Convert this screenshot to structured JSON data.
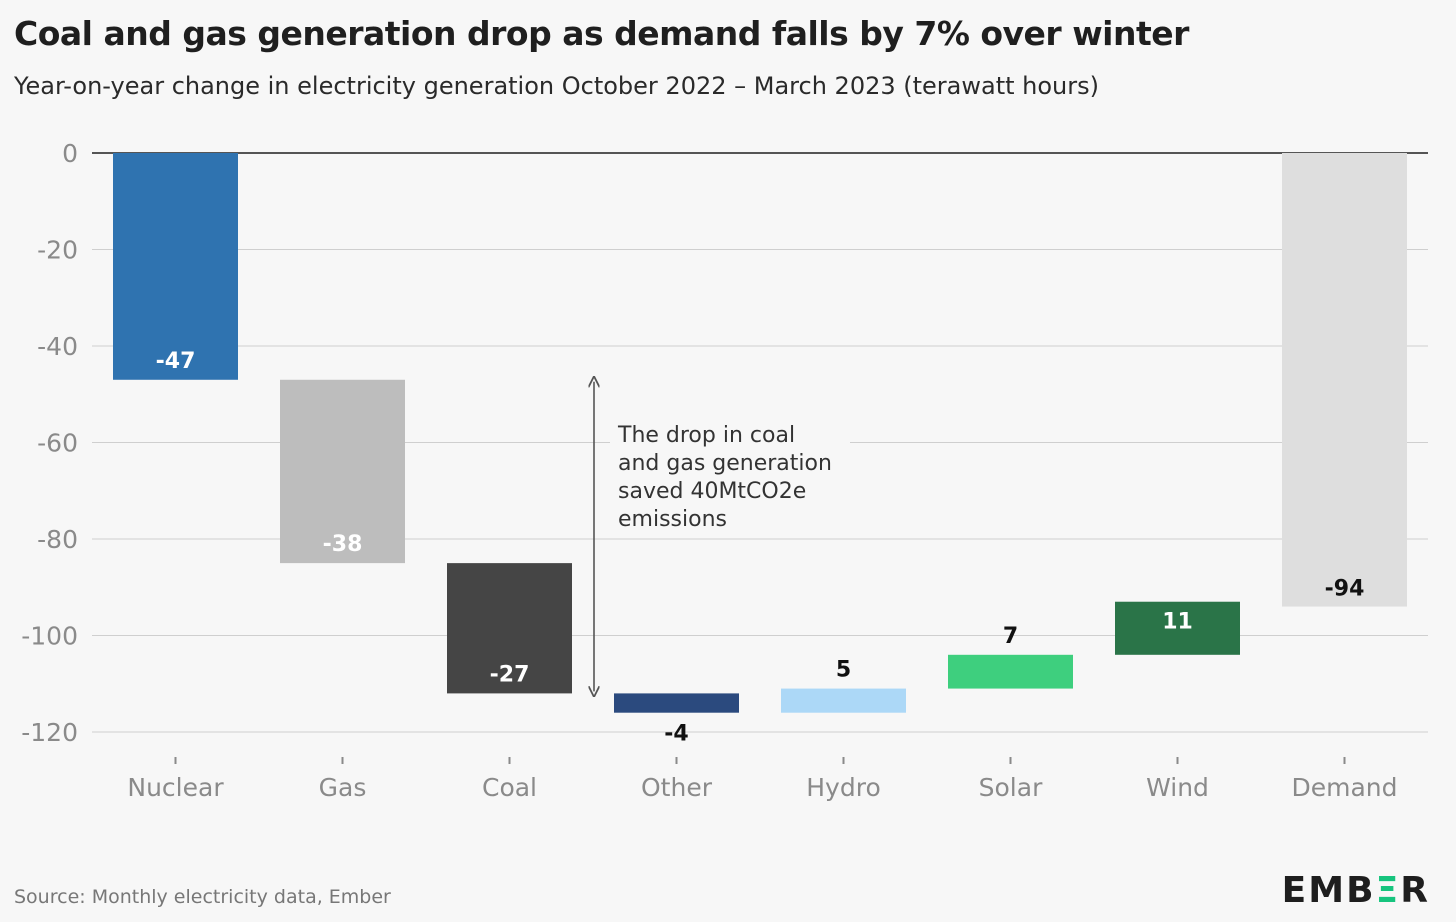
{
  "title": "Coal and gas generation drop as demand falls by 7% over winter",
  "subtitle": "Year-on-year change in electricity generation October 2022 – March 2023 (terawatt hours)",
  "source": "Source: Monthly electricity data, Ember",
  "logo": "EMBER",
  "annotation": [
    "The drop in coal",
    "and gas generation",
    "saved 40MtCO2e",
    "emissions"
  ],
  "colors": {
    "Nuclear": "#2f73b0",
    "Gas": "#bdbdbd",
    "Coal": "#454545",
    "Other": "#2b4a7e",
    "Hydro": "#acd8f7",
    "Solar": "#3ecf7e",
    "Wind": "#2a7448",
    "Demand": "#dedede",
    "brand_green": "#16c47e"
  },
  "chart_data": {
    "type": "waterfall",
    "categories": [
      "Nuclear",
      "Gas",
      "Coal",
      "Other",
      "Hydro",
      "Solar",
      "Wind",
      "Demand"
    ],
    "values": [
      -47,
      -38,
      -27,
      -4,
      5,
      7,
      11,
      -94
    ],
    "labels": [
      "-47",
      "-38",
      "-27",
      "-4",
      "5",
      "7",
      "11",
      "-94"
    ],
    "total_category": "Demand",
    "ylim": [
      -120,
      0
    ],
    "yticks": [
      0,
      -20,
      -40,
      -60,
      -80,
      -100,
      -120
    ],
    "ytick_labels": [
      "0",
      "-20",
      "-40",
      "-60",
      "-80",
      "-100",
      "-120"
    ],
    "grid": true,
    "xlabel": "",
    "ylabel": ""
  }
}
